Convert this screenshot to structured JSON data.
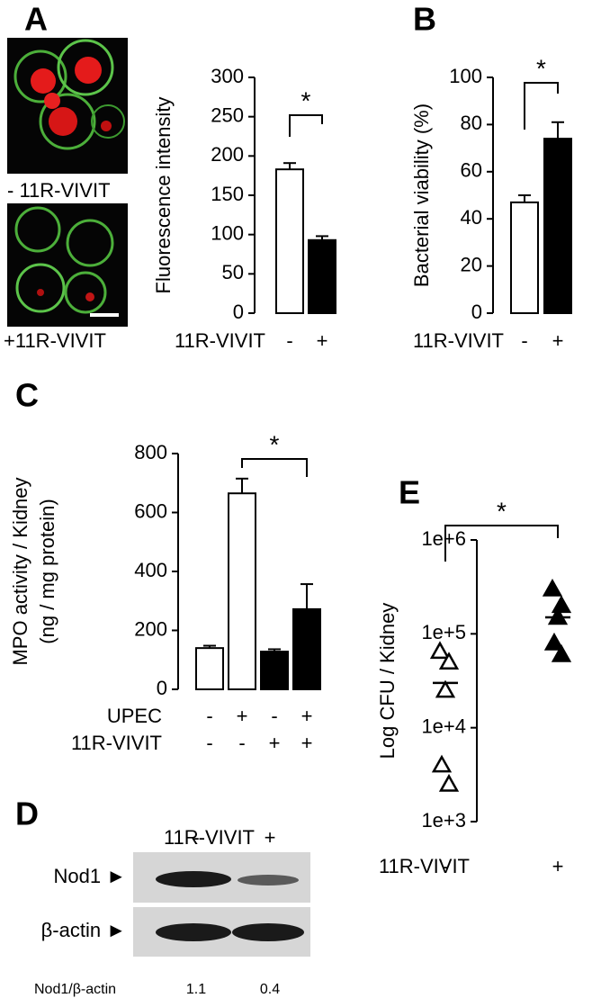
{
  "chart_data": [
    {
      "type": "bar",
      "label": "A",
      "ylabel": "Fluorescence intensity",
      "xlabel": "11R-VIVIT",
      "categories": [
        "-",
        "+"
      ],
      "values": [
        183,
        93
      ],
      "errors": [
        8,
        5
      ],
      "colors": [
        "#ffffff",
        "#000000"
      ],
      "ylim": [
        0,
        300
      ],
      "yticks": [
        0,
        50,
        100,
        150,
        200,
        250,
        300
      ],
      "annotation": "*",
      "image_labels": [
        "- 11R-VIVIT",
        "+11R-VIVIT"
      ]
    },
    {
      "type": "bar",
      "label": "B",
      "ylabel": "Bacterial viability (%)",
      "xlabel": "11R-VIVIT",
      "categories": [
        "-",
        "+"
      ],
      "values": [
        47,
        74
      ],
      "errors": [
        3,
        7
      ],
      "colors": [
        "#ffffff",
        "#000000"
      ],
      "ylim": [
        0,
        100
      ],
      "yticks": [
        0,
        20,
        40,
        60,
        80,
        100
      ],
      "annotation": "*"
    },
    {
      "type": "bar",
      "label": "C",
      "ylabel": [
        "MPO activity / Kidney",
        "(ng / mg protein)"
      ],
      "rows": [
        {
          "name": "UPEC",
          "values": [
            "-",
            "+",
            "-",
            "+"
          ]
        },
        {
          "name": "11R-VIVIT",
          "values": [
            "-",
            "-",
            "+",
            "+"
          ]
        }
      ],
      "values": [
        140,
        665,
        128,
        272
      ],
      "errors": [
        8,
        50,
        8,
        85
      ],
      "colors": [
        "#ffffff",
        "#ffffff",
        "#000000",
        "#000000"
      ],
      "ylim": [
        0,
        800
      ],
      "yticks": [
        0,
        200,
        400,
        600,
        800
      ],
      "annotation": "*"
    },
    {
      "type": "scatter",
      "label": "E",
      "ylabel": "Log CFU / Kidney",
      "xlabel": "11R-VIVIT",
      "categories": [
        "-",
        "+"
      ],
      "log": true,
      "ylim": [
        1000,
        1000000
      ],
      "yticks": [
        {
          "value": 1000,
          "label": "1e+3"
        },
        {
          "value": 10000,
          "label": "1e+4"
        },
        {
          "value": 100000,
          "label": "1e+5"
        },
        {
          "value": 1000000,
          "label": "1e+6"
        }
      ],
      "series": [
        {
          "marker": "open-triangle",
          "color": "#000000",
          "values": [
            65000,
            50000,
            25000,
            4000,
            2500
          ]
        },
        {
          "marker": "filled-triangle",
          "color": "#000000",
          "values": [
            300000,
            200000,
            150000,
            80000,
            60000
          ]
        }
      ],
      "means": [
        30000,
        150000
      ],
      "annotation": "*"
    }
  ],
  "blot": {
    "label": "D",
    "treatment": "11R-VIVIT",
    "lanes": [
      "-",
      "+"
    ],
    "bands": [
      "Nod1 ►",
      "β-actin ►"
    ],
    "ratio_label": "Nod1/β-actin",
    "ratios": [
      "1.1",
      "0.4"
    ]
  }
}
